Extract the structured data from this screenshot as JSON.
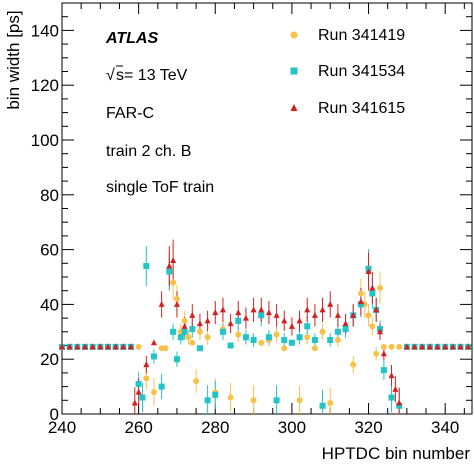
{
  "chart_data": {
    "type": "scatter",
    "title": "",
    "xlabel": "HPTDC bin number",
    "ylabel": "bin width [ps]",
    "xlim": [
      240,
      347
    ],
    "ylim": [
      0,
      150
    ],
    "xticks": [
      240,
      260,
      280,
      300,
      320,
      340
    ],
    "yticks": [
      0,
      20,
      40,
      60,
      80,
      100,
      120,
      140
    ],
    "grid": false,
    "legend_position": "top-right",
    "annotations": {
      "experiment": "ATLAS",
      "energy_prefix": "s",
      "energy": " = 13 TeV",
      "station": "FAR-C",
      "channel": "train 2 ch. B",
      "mode": "single ToF train"
    },
    "series": [
      {
        "name": "Run 341419",
        "marker": "circle",
        "color": "#f5c24a",
        "points": [
          [
            240,
            24.5
          ],
          [
            242,
            24.5
          ],
          [
            244,
            24.5
          ],
          [
            246,
            24.5
          ],
          [
            248,
            24.5
          ],
          [
            250,
            24.5
          ],
          [
            252,
            24.5
          ],
          [
            254,
            24.5
          ],
          [
            256,
            24.5
          ],
          [
            258,
            24.5
          ],
          [
            260,
            24.5
          ],
          [
            262,
            13
          ],
          [
            264,
            8
          ],
          [
            266,
            24
          ],
          [
            267,
            24
          ],
          [
            268,
            52
          ],
          [
            269,
            48
          ],
          [
            270,
            42
          ],
          [
            271,
            30
          ],
          [
            272,
            34
          ],
          [
            273,
            28
          ],
          [
            274,
            26
          ],
          [
            275,
            12
          ],
          [
            276,
            30
          ],
          [
            278,
            28
          ],
          [
            280,
            8
          ],
          [
            282,
            31
          ],
          [
            284,
            6
          ],
          [
            286,
            29
          ],
          [
            288,
            28
          ],
          [
            290,
            5
          ],
          [
            292,
            26
          ],
          [
            294,
            27
          ],
          [
            296,
            29
          ],
          [
            298,
            24
          ],
          [
            300,
            26
          ],
          [
            302,
            5
          ],
          [
            304,
            28
          ],
          [
            306,
            24
          ],
          [
            308,
            30
          ],
          [
            310,
            4
          ],
          [
            312,
            27
          ],
          [
            314,
            32
          ],
          [
            316,
            18
          ],
          [
            318,
            44
          ],
          [
            319,
            40
          ],
          [
            320,
            36
          ],
          [
            321,
            32
          ],
          [
            322,
            22
          ],
          [
            323,
            46
          ],
          [
            324,
            24.5
          ],
          [
            326,
            24.5
          ],
          [
            328,
            24.5
          ],
          [
            330,
            24.5
          ],
          [
            332,
            24.5
          ],
          [
            334,
            24.5
          ],
          [
            336,
            24.5
          ],
          [
            338,
            24.5
          ],
          [
            340,
            24.5
          ],
          [
            342,
            24.5
          ],
          [
            344,
            24.5
          ],
          [
            346,
            24.5
          ]
        ]
      },
      {
        "name": "Run 341534",
        "marker": "square",
        "color": "#22c4c8",
        "points": [
          [
            240,
            24.5
          ],
          [
            242,
            24.5
          ],
          [
            244,
            24.5
          ],
          [
            246,
            24.5
          ],
          [
            248,
            24.5
          ],
          [
            250,
            24.5
          ],
          [
            252,
            24.5
          ],
          [
            254,
            24.5
          ],
          [
            256,
            24.5
          ],
          [
            258,
            24.5
          ],
          [
            260,
            11
          ],
          [
            261,
            6
          ],
          [
            262,
            54
          ],
          [
            264,
            21
          ],
          [
            266,
            10
          ],
          [
            268,
            52
          ],
          [
            269,
            30
          ],
          [
            270,
            20
          ],
          [
            271,
            28
          ],
          [
            272,
            30
          ],
          [
            274,
            31
          ],
          [
            276,
            24
          ],
          [
            278,
            5
          ],
          [
            280,
            7
          ],
          [
            282,
            30
          ],
          [
            284,
            25
          ],
          [
            286,
            34
          ],
          [
            288,
            28
          ],
          [
            290,
            27
          ],
          [
            292,
            36
          ],
          [
            294,
            28
          ],
          [
            296,
            5
          ],
          [
            298,
            27
          ],
          [
            300,
            26
          ],
          [
            302,
            28
          ],
          [
            304,
            32
          ],
          [
            306,
            27
          ],
          [
            308,
            3
          ],
          [
            310,
            27
          ],
          [
            312,
            30
          ],
          [
            314,
            31
          ],
          [
            316,
            36
          ],
          [
            318,
            40
          ],
          [
            320,
            53
          ],
          [
            321,
            44
          ],
          [
            322,
            38
          ],
          [
            323,
            31
          ],
          [
            324,
            16
          ],
          [
            326,
            6
          ],
          [
            328,
            3
          ],
          [
            330,
            24.5
          ],
          [
            332,
            24.5
          ],
          [
            334,
            24.5
          ],
          [
            336,
            24.5
          ],
          [
            338,
            24.5
          ],
          [
            340,
            24.5
          ],
          [
            342,
            24.5
          ],
          [
            344,
            24.5
          ],
          [
            346,
            24.5
          ]
        ]
      },
      {
        "name": "Run 341615",
        "marker": "triangle",
        "color": "#d42020",
        "points": [
          [
            240,
            24.5
          ],
          [
            242,
            24.5
          ],
          [
            244,
            24.5
          ],
          [
            246,
            24.5
          ],
          [
            248,
            24.5
          ],
          [
            250,
            24.5
          ],
          [
            252,
            24.5
          ],
          [
            254,
            24.5
          ],
          [
            256,
            24.5
          ],
          [
            258,
            24.5
          ],
          [
            259,
            4
          ],
          [
            260,
            8
          ],
          [
            262,
            18
          ],
          [
            264,
            26
          ],
          [
            266,
            40
          ],
          [
            268,
            54
          ],
          [
            269,
            56
          ],
          [
            270,
            40
          ],
          [
            272,
            32
          ],
          [
            274,
            36
          ],
          [
            276,
            33
          ],
          [
            278,
            34
          ],
          [
            280,
            37
          ],
          [
            282,
            38
          ],
          [
            284,
            33
          ],
          [
            286,
            37
          ],
          [
            288,
            35
          ],
          [
            290,
            38
          ],
          [
            292,
            38
          ],
          [
            294,
            37
          ],
          [
            296,
            36
          ],
          [
            298,
            34
          ],
          [
            300,
            32
          ],
          [
            302,
            34
          ],
          [
            304,
            38
          ],
          [
            306,
            36
          ],
          [
            308,
            38
          ],
          [
            310,
            40
          ],
          [
            312,
            36
          ],
          [
            314,
            33
          ],
          [
            316,
            36
          ],
          [
            318,
            41
          ],
          [
            320,
            52
          ],
          [
            321,
            46
          ],
          [
            322,
            38
          ],
          [
            323,
            30
          ],
          [
            324,
            22
          ],
          [
            326,
            14
          ],
          [
            327,
            9
          ],
          [
            328,
            4
          ],
          [
            330,
            24.5
          ],
          [
            332,
            24.5
          ],
          [
            334,
            24.5
          ],
          [
            336,
            24.5
          ],
          [
            338,
            24.5
          ],
          [
            340,
            24.5
          ],
          [
            342,
            24.5
          ],
          [
            344,
            24.5
          ],
          [
            346,
            24.5
          ]
        ]
      }
    ]
  }
}
